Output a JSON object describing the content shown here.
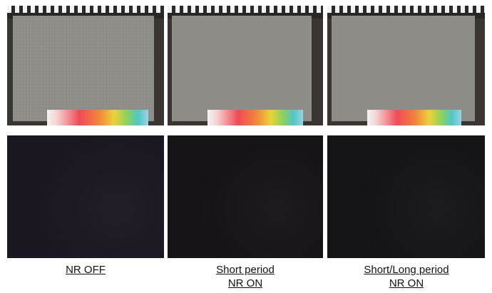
{
  "captions": [
    {
      "lines": [
        "NR OFF"
      ]
    },
    {
      "lines": [
        "Short period",
        "NR ON"
      ]
    },
    {
      "lines": [
        "Short/Long period",
        "NR ON"
      ]
    }
  ],
  "colors": {
    "background": "#ffffff",
    "chart_gray": "#8f8d88",
    "dark_panel": "#151316"
  }
}
